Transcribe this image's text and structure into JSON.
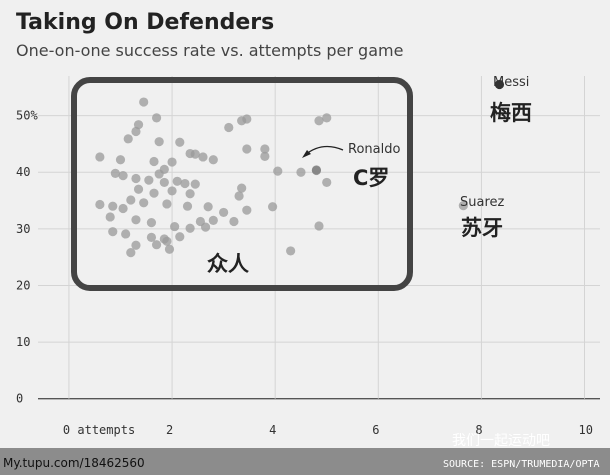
{
  "chart_data": {
    "type": "scatter",
    "title": "Taking On Defenders",
    "subtitle": "One-on-one success rate vs. attempts per game",
    "xlim": [
      -0.6,
      10.3
    ],
    "ylim": [
      -2,
      57
    ],
    "x_ticks": [
      {
        "value": 0,
        "label": "0 attempts"
      },
      {
        "value": 2,
        "label": "2"
      },
      {
        "value": 4,
        "label": "4"
      },
      {
        "value": 6,
        "label": "6"
      },
      {
        "value": 8,
        "label": "8"
      },
      {
        "value": 10,
        "label": "10"
      }
    ],
    "y_ticks": [
      {
        "value": 0,
        "label": "0"
      },
      {
        "value": 10,
        "label": "10"
      },
      {
        "value": 20,
        "label": "20"
      },
      {
        "value": 30,
        "label": "30"
      },
      {
        "value": 40,
        "label": "40"
      },
      {
        "value": 50,
        "label": "50%"
      }
    ],
    "grid": true,
    "colors": {
      "background": "#f0f0f0",
      "grid": "#d4d4d4",
      "point": "#999999",
      "messi": "#333333",
      "box": "#444444",
      "footer": "#8c8c8c"
    },
    "series": [
      {
        "points": [
          [
            1.45,
            52.4
          ],
          [
            1.7,
            49.6
          ],
          [
            1.35,
            48.4
          ],
          [
            1.3,
            47.2
          ],
          [
            1.15,
            45.9
          ],
          [
            1.75,
            45.4
          ],
          [
            2.15,
            45.3
          ],
          [
            0.6,
            42.7
          ],
          [
            1.0,
            42.2
          ],
          [
            1.65,
            41.9
          ],
          [
            2.0,
            41.8
          ],
          [
            2.35,
            43.3
          ],
          [
            2.45,
            43.2
          ],
          [
            2.6,
            42.7
          ],
          [
            2.8,
            42.2
          ],
          [
            1.85,
            40.5
          ],
          [
            1.75,
            39.7
          ],
          [
            0.9,
            39.8
          ],
          [
            1.05,
            39.4
          ],
          [
            1.3,
            38.9
          ],
          [
            1.55,
            38.6
          ],
          [
            1.85,
            38.2
          ],
          [
            2.1,
            38.4
          ],
          [
            2.25,
            38.0
          ],
          [
            2.45,
            37.9
          ],
          [
            1.35,
            37.0
          ],
          [
            1.65,
            36.3
          ],
          [
            2.0,
            36.7
          ],
          [
            2.35,
            36.2
          ],
          [
            1.2,
            35.1
          ],
          [
            1.45,
            34.6
          ],
          [
            1.9,
            34.4
          ],
          [
            2.3,
            34.0
          ],
          [
            0.6,
            34.3
          ],
          [
            0.85,
            34.0
          ],
          [
            1.05,
            33.6
          ],
          [
            2.7,
            33.9
          ],
          [
            3.0,
            32.9
          ],
          [
            2.8,
            31.5
          ],
          [
            2.55,
            31.3
          ],
          [
            1.3,
            31.6
          ],
          [
            1.6,
            31.1
          ],
          [
            0.8,
            32.1
          ],
          [
            2.05,
            30.4
          ],
          [
            2.35,
            30.1
          ],
          [
            2.65,
            30.3
          ],
          [
            0.85,
            29.5
          ],
          [
            1.1,
            29.1
          ],
          [
            1.6,
            28.5
          ],
          [
            1.85,
            28.2
          ],
          [
            2.15,
            28.6
          ],
          [
            1.9,
            27.8
          ],
          [
            1.3,
            27.1
          ],
          [
            1.7,
            27.2
          ],
          [
            1.95,
            26.4
          ],
          [
            1.2,
            25.8
          ],
          [
            3.1,
            47.9
          ],
          [
            3.35,
            49.1
          ],
          [
            3.45,
            49.4
          ],
          [
            3.45,
            44.1
          ],
          [
            3.8,
            44.1
          ],
          [
            3.8,
            42.8
          ],
          [
            4.5,
            40.0
          ],
          [
            4.05,
            40.2
          ],
          [
            3.35,
            37.2
          ],
          [
            3.3,
            35.8
          ],
          [
            3.95,
            33.9
          ],
          [
            3.45,
            33.3
          ],
          [
            3.2,
            31.3
          ],
          [
            4.8,
            40.3
          ],
          [
            5.0,
            38.2
          ],
          [
            4.85,
            49.1
          ],
          [
            5.0,
            49.6
          ],
          [
            4.85,
            30.5
          ],
          [
            4.3,
            26.1
          ]
        ]
      },
      {
        "name": "Messi",
        "points": [
          [
            8.35,
            55.5
          ]
        ]
      },
      {
        "name": "Ronaldo",
        "points": [
          [
            4.8,
            40.4
          ]
        ]
      },
      {
        "name": "Suarez",
        "points": [
          [
            7.65,
            34.1
          ]
        ]
      }
    ],
    "annotations": [
      {
        "text": "Messi",
        "note": "梅西"
      },
      {
        "text": "Ronaldo",
        "note": "C罗"
      },
      {
        "text": "Suarez",
        "note": "苏牙"
      },
      {
        "note": "众人"
      }
    ],
    "source": "SOURCE: ESPN/TRUMEDIA/OPTA"
  },
  "footer": {
    "watermark_left": "My.tupu.com/18462560",
    "watermark_right": "我们一起运动吧"
  }
}
